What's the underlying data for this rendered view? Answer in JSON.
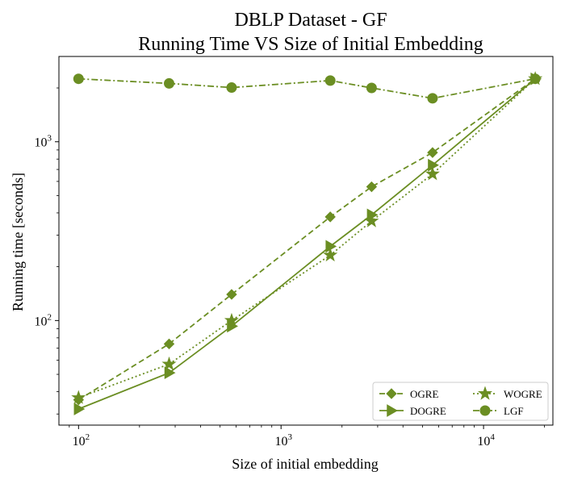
{
  "chart_data": {
    "type": "line",
    "title": [
      "DBLP Dataset - GF",
      "Running Time VS Size of Initial Embedding"
    ],
    "xlabel": "Size of initial embedding",
    "ylabel": "Running time [seconds]",
    "x_scale": "log",
    "y_scale": "log",
    "xlim": [
      80,
      22000
    ],
    "ylim": [
      26,
      3000
    ],
    "x_ticks": [
      {
        "value": 100,
        "base": "10",
        "exp": "2"
      },
      {
        "value": 1000,
        "base": "10",
        "exp": "3"
      },
      {
        "value": 10000,
        "base": "10",
        "exp": "4"
      }
    ],
    "y_ticks": [
      {
        "value": 100,
        "base": "10",
        "exp": "2"
      },
      {
        "value": 1000,
        "base": "10",
        "exp": "3"
      }
    ],
    "color": "#6b8e23",
    "grid": false,
    "legend_position": "lower-right",
    "series": [
      {
        "name": "OGRE",
        "marker": "diamond",
        "linestyle": "dashed",
        "x": [
          100,
          280,
          570,
          1750,
          2800,
          5600,
          18000
        ],
        "y": [
          36,
          74,
          140,
          380,
          560,
          870,
          2250
        ]
      },
      {
        "name": "DOGRE",
        "marker": "triangle-right",
        "linestyle": "solid",
        "x": [
          100,
          280,
          570,
          1750,
          2800,
          5600,
          18000
        ],
        "y": [
          32,
          51,
          93,
          260,
          390,
          740,
          2250
        ]
      },
      {
        "name": "WOGRE",
        "marker": "star",
        "linestyle": "dotted",
        "x": [
          100,
          280,
          570,
          1750,
          2800,
          5600,
          18000
        ],
        "y": [
          37,
          57,
          100,
          232,
          360,
          660,
          2250
        ]
      },
      {
        "name": "LGF",
        "marker": "circle",
        "linestyle": "dashdot",
        "x": [
          100,
          280,
          570,
          1750,
          2800,
          5600,
          18000
        ],
        "y": [
          2250,
          2120,
          2010,
          2200,
          2000,
          1750,
          2250
        ]
      }
    ]
  }
}
